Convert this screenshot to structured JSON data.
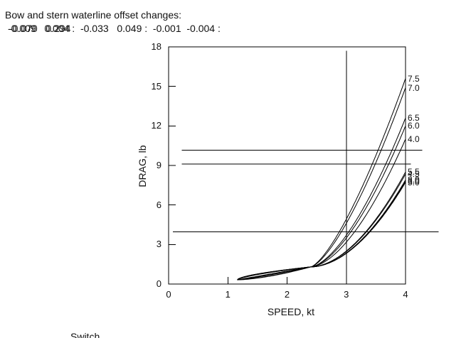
{
  "header": {
    "line1": "Bow and stern waterline offset changes:",
    "line2_base": "-0.009   0.004 :  -0.033   0.049 :  -0.001  -0.004 :",
    "line2_overlay": "-0.070   0.294"
  },
  "footer": {
    "partial_text": "Switch"
  },
  "chart_data": {
    "type": "line",
    "title": "",
    "xlabel": "SPEED, kt",
    "ylabel": "DRAG, lb",
    "xlim": [
      0,
      4
    ],
    "ylim": [
      0,
      18
    ],
    "xticks": [
      "0",
      "1",
      "2",
      "3",
      "4"
    ],
    "yticks": [
      "0",
      "3",
      "6",
      "9",
      "12",
      "15",
      "18"
    ],
    "grid": false,
    "legend_position": "curve-end-labels-right",
    "curve_model": {
      "start": {
        "speed": 1.16,
        "drag": 0.32
      },
      "knot": {
        "speed": 2.4,
        "drag": 1.3
      },
      "end_speed": 4.0
    },
    "series": [
      {
        "name": "7.5",
        "end_drag": 15.6
      },
      {
        "name": "7.0",
        "end_drag": 14.9
      },
      {
        "name": "6.5",
        "end_drag": 12.6
      },
      {
        "name": "6.0",
        "end_drag": 12.0
      },
      {
        "name": "4.0",
        "end_drag": 11.0
      },
      {
        "name": "5.5",
        "end_drag": 8.5
      },
      {
        "name": "4.5",
        "end_drag": 8.35
      },
      {
        "name": "8.0",
        "end_drag": 7.9
      },
      {
        "name": "3.0",
        "end_drag": 7.8
      },
      {
        "name": "5.0",
        "end_drag": 7.72
      }
    ],
    "reference_lines": {
      "horizontal": [
        {
          "drag": 10.15,
          "speed_start": 0.22,
          "speed_end": 4.28
        },
        {
          "drag": 9.1,
          "speed_start": 0.22,
          "speed_end": 4.09
        },
        {
          "drag": 3.95,
          "speed_start": 0.07,
          "speed_end": 4.56
        }
      ],
      "vertical": [
        {
          "speed": 3.0,
          "drag_start": 0,
          "drag_end": 17.7
        }
      ]
    }
  }
}
